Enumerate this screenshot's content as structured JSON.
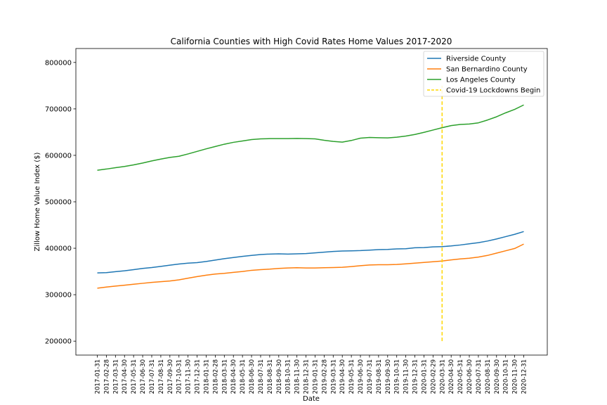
{
  "chart_data": {
    "type": "line",
    "title": "California Counties with High Covid Rates Home Values 2017-2020",
    "xlabel": "Date",
    "ylabel": "Zillow Home Value Index ($)",
    "ylim": [
      170000,
      830000
    ],
    "yticks": [
      200000,
      300000,
      400000,
      500000,
      600000,
      700000,
      800000
    ],
    "ytick_labels": [
      "200000",
      "300000",
      "400000",
      "500000",
      "600000",
      "700000",
      "800000"
    ],
    "grid": false,
    "legend_placement": "top-right",
    "x": [
      "2017-01-31",
      "2017-02-28",
      "2017-03-31",
      "2017-04-30",
      "2017-05-31",
      "2017-06-30",
      "2017-07-31",
      "2017-08-31",
      "2017-09-30",
      "2017-10-31",
      "2017-11-30",
      "2017-12-31",
      "2018-01-31",
      "2018-02-28",
      "2018-03-31",
      "2018-04-30",
      "2018-05-31",
      "2018-06-30",
      "2018-07-31",
      "2018-08-31",
      "2018-09-30",
      "2018-10-31",
      "2018-11-30",
      "2018-12-31",
      "2019-01-31",
      "2019-02-28",
      "2019-03-31",
      "2019-04-30",
      "2019-05-31",
      "2019-06-30",
      "2019-07-31",
      "2019-08-31",
      "2019-09-30",
      "2019-10-31",
      "2019-11-30",
      "2019-12-31",
      "2020-01-31",
      "2020-02-29",
      "2020-03-31",
      "2020-04-30",
      "2020-05-31",
      "2020-06-30",
      "2020-07-31",
      "2020-08-31",
      "2020-09-30",
      "2020-10-31",
      "2020-11-30",
      "2020-12-31"
    ],
    "series": [
      {
        "name": "Riverside County",
        "color": "#1f77b4",
        "values": [
          347000,
          347500,
          349500,
          351500,
          354000,
          356500,
          358500,
          361000,
          363500,
          366000,
          368000,
          369000,
          371500,
          374500,
          377500,
          380000,
          382500,
          384500,
          386500,
          387500,
          388000,
          387500,
          388000,
          388500,
          390000,
          391500,
          393000,
          394000,
          394500,
          395000,
          396000,
          397000,
          397500,
          398500,
          399000,
          401000,
          401500,
          403000,
          403500,
          405000,
          407000,
          409500,
          412000,
          415500,
          420000,
          425000,
          430000,
          436000
        ]
      },
      {
        "name": "San Bernardino County",
        "color": "#ff7f0e",
        "values": [
          314000,
          316500,
          318500,
          320500,
          322500,
          324500,
          326500,
          328000,
          329500,
          332000,
          335500,
          339000,
          342000,
          344500,
          346000,
          348000,
          350000,
          352500,
          354000,
          355000,
          356500,
          357500,
          358000,
          357500,
          357500,
          358000,
          358500,
          359000,
          360500,
          362500,
          364000,
          364500,
          364500,
          365000,
          366500,
          368000,
          369500,
          371000,
          372500,
          375000,
          377000,
          378500,
          381000,
          384500,
          389500,
          394500,
          399500,
          409000
        ]
      },
      {
        "name": "Los Angeles County",
        "color": "#2ca02c",
        "values": [
          568000,
          570500,
          573500,
          576000,
          579500,
          583500,
          588000,
          592000,
          595500,
          598000,
          603000,
          608500,
          614000,
          619000,
          624000,
          628000,
          631000,
          634000,
          635500,
          636000,
          636000,
          636000,
          636500,
          636000,
          635500,
          632500,
          630000,
          628500,
          632000,
          637000,
          638500,
          638000,
          637500,
          639000,
          641500,
          645000,
          649500,
          654500,
          659500,
          664000,
          666500,
          667500,
          670000,
          676000,
          683000,
          691500,
          699000,
          708500
        ]
      }
    ],
    "annotations": [
      {
        "name": "Covid-19 Lockdowns Begin",
        "x": "2020-03-31",
        "y_range": [
          200000,
          750000
        ],
        "color": "#ffd700",
        "style": "dashed"
      }
    ]
  }
}
